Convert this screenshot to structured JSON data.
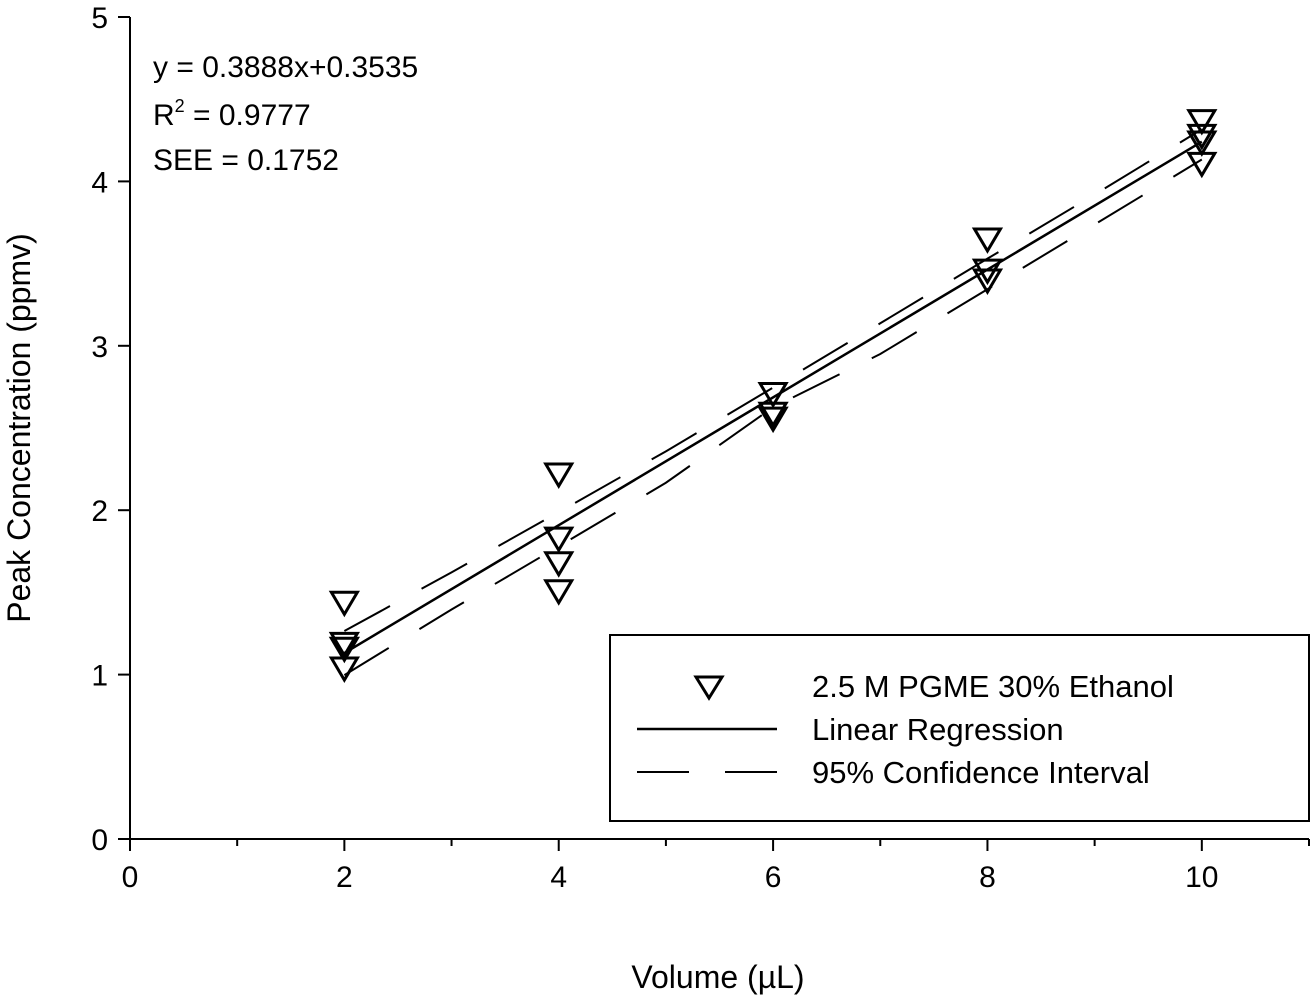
{
  "chart_data": {
    "type": "scatter",
    "title": "",
    "xlabel": "Volume (µL)",
    "ylabel": "Peak Concentration (ppmv)",
    "xlim": [
      0,
      11
    ],
    "ylim": [
      0,
      5
    ],
    "xticks": [
      0,
      2,
      4,
      6,
      8,
      10
    ],
    "xtick_labels": [
      "0",
      "2",
      "4",
      "6",
      "8",
      "10"
    ],
    "xminor": [
      1,
      3,
      5,
      7,
      9,
      11
    ],
    "yticks": [
      0,
      1,
      2,
      3,
      4,
      5
    ],
    "ytick_labels": [
      "0",
      "1",
      "2",
      "3",
      "4",
      "5"
    ],
    "grid": false,
    "annotations": {
      "equation": "y = 0.3888x+0.3535",
      "r2_label": "R",
      "r2_sup": "2",
      "r2_value": " = 0.9777",
      "see": "SEE = 0.1752"
    },
    "series": [
      {
        "name": "2.5 M PGME 30% Ethanol",
        "kind": "scatter",
        "marker": "triangle-down",
        "points": [
          [
            2,
            1.44
          ],
          [
            2,
            1.19
          ],
          [
            2,
            1.16
          ],
          [
            2,
            1.04
          ],
          [
            4,
            2.22
          ],
          [
            4,
            1.83
          ],
          [
            4,
            1.68
          ],
          [
            4,
            1.51
          ],
          [
            6,
            2.71
          ],
          [
            6,
            2.59
          ],
          [
            6,
            2.56
          ],
          [
            8,
            3.65
          ],
          [
            8,
            3.46
          ],
          [
            8,
            3.4
          ],
          [
            10,
            4.37
          ],
          [
            10,
            4.28
          ],
          [
            10,
            4.24
          ],
          [
            10,
            4.11
          ]
        ]
      },
      {
        "name": "Linear Regression",
        "kind": "line",
        "slope": 0.3888,
        "intercept": 0.3535,
        "x_range": [
          2,
          10
        ]
      },
      {
        "name": "95% Confidence Interval",
        "kind": "dashed",
        "x": [
          2,
          3,
          4,
          5,
          6,
          7,
          8,
          9,
          10
        ],
        "upper": [
          1.265,
          1.622,
          1.988,
          2.358,
          2.746,
          3.137,
          3.53,
          3.92,
          4.317
        ],
        "lower": [
          0.997,
          1.396,
          1.78,
          2.167,
          2.626,
          2.95,
          3.344,
          3.738,
          4.133
        ]
      }
    ],
    "legend": {
      "position": "bottom-right",
      "entries": [
        "2.5 M PGME 30% Ethanol",
        "Linear Regression",
        "95% Confidence Interval"
      ]
    }
  }
}
